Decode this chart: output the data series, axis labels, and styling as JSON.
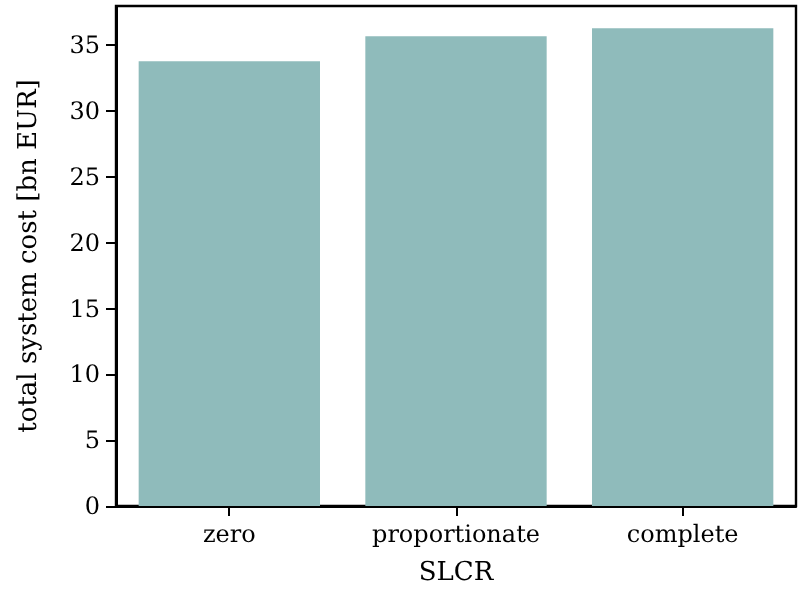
{
  "chart_data": {
    "type": "bar",
    "xlabel": "SLCR",
    "ylabel": "total system cost [bn EUR]",
    "categories": [
      "zero",
      "proportionate",
      "complete"
    ],
    "values": [
      33.8,
      35.7,
      36.3
    ],
    "color": "#8fbbbb",
    "ylim": [
      0,
      38
    ],
    "yticks": [
      0,
      5,
      10,
      15,
      20,
      25,
      30,
      35
    ],
    "grid": false
  }
}
